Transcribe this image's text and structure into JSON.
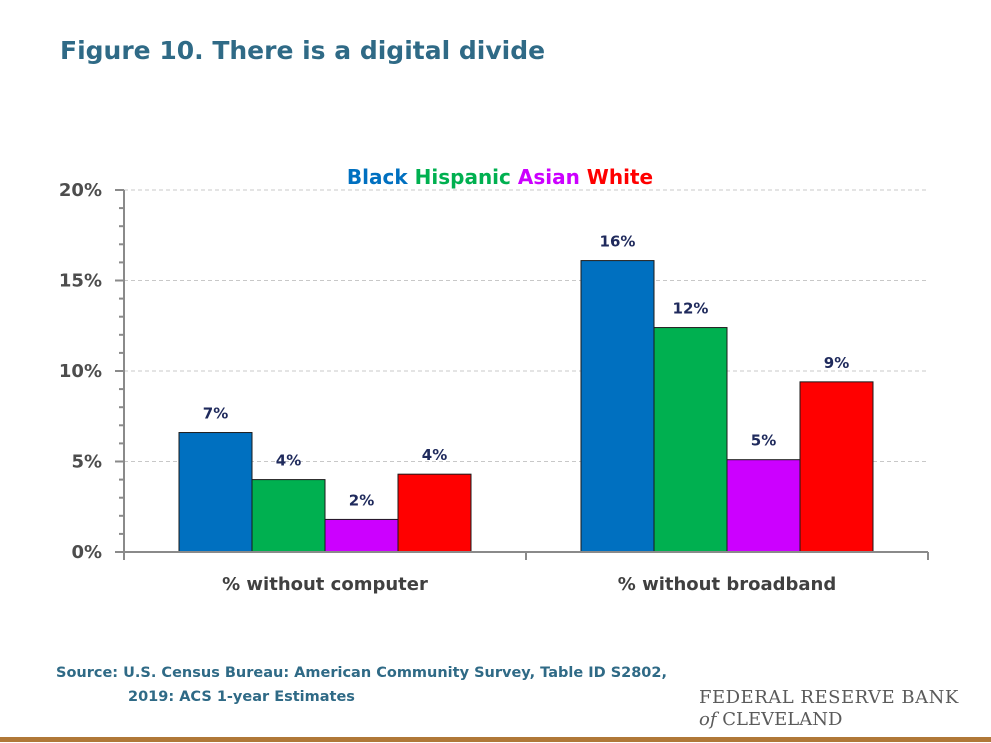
{
  "title": "Figure 10. There is a digital divide",
  "chart_data": {
    "type": "bar",
    "title": "",
    "xlabel": "",
    "ylabel": "",
    "categories": [
      "% without computer",
      "% without broadband"
    ],
    "series": [
      {
        "name": "Black",
        "color": "#0070c0",
        "values": [
          6.6,
          16.1
        ],
        "labels": [
          "7%",
          "16%"
        ]
      },
      {
        "name": "Hispanic",
        "color": "#00b050",
        "values": [
          4.0,
          12.4
        ],
        "labels": [
          "4%",
          "12%"
        ]
      },
      {
        "name": "Asian",
        "color": "#cc00ff",
        "values": [
          1.8,
          5.1
        ],
        "labels": [
          "2%",
          "5%"
        ]
      },
      {
        "name": "White",
        "color": "#ff0000",
        "values": [
          4.3,
          9.4
        ],
        "labels": [
          "4%",
          "9%"
        ]
      }
    ],
    "ylim": [
      0,
      20
    ],
    "yticks": [
      0,
      5,
      10,
      15,
      20
    ],
    "ytick_labels": [
      "0%",
      "5%",
      "10%",
      "15%",
      "20%"
    ],
    "grid": "horizontal dashed",
    "legend_position": "top-center"
  },
  "source": {
    "line1": "Source: U.S. Census Bureau: American Community Survey, Table ID S2802,",
    "line2": "2019: ACS 1-year Estimates"
  },
  "logo": {
    "line1": "FEDERAL RESERVE BANK",
    "line2_italic": "of",
    "line2_rest": "CLEVELAND"
  }
}
